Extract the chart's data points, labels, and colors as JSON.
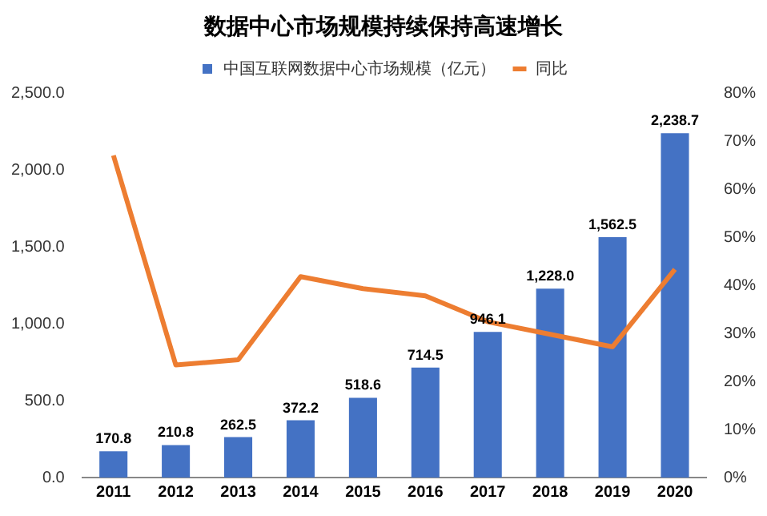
{
  "chart_data": {
    "type": "bar",
    "title": "数据中心市场规模持续保持高速增长",
    "categories": [
      "2011",
      "2012",
      "2013",
      "2014",
      "2015",
      "2016",
      "2017",
      "2018",
      "2019",
      "2020"
    ],
    "series": [
      {
        "name": "中国互联网数据中心市场规模（亿元）",
        "color": "#4472c4",
        "values": [
          170.8,
          210.8,
          262.5,
          372.2,
          518.6,
          714.5,
          946.1,
          1228.0,
          1562.5,
          2238.7
        ],
        "value_labels": [
          "170.8",
          "210.8",
          "262.5",
          "372.2",
          "518.6",
          "714.5",
          "946.1",
          "1,228.0",
          "1,562.5",
          "2,238.7"
        ]
      },
      {
        "name": "同比",
        "type": "line",
        "axis": "y2",
        "color": "#ed7d31",
        "marker": "none",
        "values": [
          67,
          23.4,
          24.5,
          41.8,
          39.3,
          37.8,
          32.4,
          29.8,
          27.2,
          43.3
        ]
      }
    ],
    "ylim": [
      0,
      2500
    ],
    "yticks": [
      {
        "value": 0,
        "label": "0.0"
      },
      {
        "value": 500,
        "label": "500.0"
      },
      {
        "value": 1000,
        "label": "1,000.0"
      },
      {
        "value": 1500,
        "label": "1,500.0"
      },
      {
        "value": 2000,
        "label": "2,000.0"
      },
      {
        "value": 2500,
        "label": "2,500.0"
      }
    ],
    "y2lim": [
      0,
      80
    ],
    "y2ticks": [
      {
        "value": 0,
        "label": "0%"
      },
      {
        "value": 10,
        "label": "10%"
      },
      {
        "value": 20,
        "label": "20%"
      },
      {
        "value": 30,
        "label": "30%"
      },
      {
        "value": 40,
        "label": "40%"
      },
      {
        "value": 50,
        "label": "50%"
      },
      {
        "value": 60,
        "label": "60%"
      },
      {
        "value": 70,
        "label": "70%"
      },
      {
        "value": 80,
        "label": "80%"
      }
    ],
    "grid": false,
    "legend": "top"
  }
}
